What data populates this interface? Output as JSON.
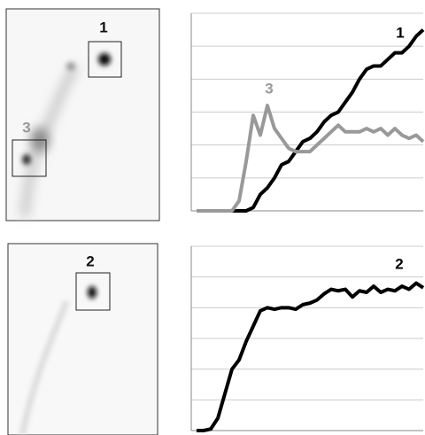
{
  "images": [
    {
      "labels": [
        "1",
        "3"
      ]
    },
    {
      "labels": [
        "2"
      ]
    }
  ],
  "chart_data": [
    {
      "type": "line",
      "x": [
        0,
        1,
        2,
        3,
        4,
        5,
        6,
        7,
        8,
        9,
        10,
        11,
        12,
        13,
        14,
        15,
        16,
        17,
        18,
        19,
        20,
        21,
        22,
        23,
        24,
        25,
        26,
        27,
        28,
        29,
        30,
        31,
        32
      ],
      "xlim": [
        0,
        32
      ],
      "ylim": [
        0,
        6
      ],
      "yticks": [
        0,
        1,
        2,
        3,
        4,
        5,
        6
      ],
      "grid": true,
      "series": [
        {
          "name": "1",
          "color": "#000000",
          "values": [
            0,
            0,
            0,
            0,
            0,
            0,
            0,
            0,
            0.1,
            0.5,
            0.7,
            1.0,
            1.4,
            1.5,
            1.8,
            2.1,
            2.2,
            2.4,
            2.7,
            2.9,
            3.0,
            3.3,
            3.6,
            4.0,
            4.3,
            4.4,
            4.4,
            4.6,
            4.8,
            4.8,
            5.0,
            5.3,
            5.5
          ]
        },
        {
          "name": "3",
          "color": "#999999",
          "values": [
            0,
            0,
            0,
            0,
            0,
            0,
            0.3,
            1.5,
            2.9,
            2.3,
            3.2,
            2.5,
            2.2,
            1.9,
            1.8,
            1.8,
            1.8,
            2.0,
            2.2,
            2.4,
            2.6,
            2.4,
            2.4,
            2.4,
            2.5,
            2.4,
            2.5,
            2.3,
            2.5,
            2.3,
            2.2,
            2.3,
            2.1
          ]
        }
      ]
    },
    {
      "type": "line",
      "x": [
        0,
        1,
        2,
        3,
        4,
        5,
        6,
        7,
        8,
        9,
        10,
        11,
        12,
        13,
        14,
        15,
        16,
        17,
        18,
        19,
        20,
        21,
        22,
        23,
        24,
        25,
        26,
        27,
        28,
        29,
        30,
        31,
        32
      ],
      "xlim": [
        0,
        32
      ],
      "ylim": [
        0,
        6
      ],
      "yticks": [
        0,
        1,
        2,
        3,
        4,
        5,
        6
      ],
      "grid": true,
      "series": [
        {
          "name": "2",
          "color": "#000000",
          "values": [
            0,
            0,
            0.05,
            0.4,
            1.2,
            2.0,
            2.3,
            2.9,
            3.4,
            3.9,
            4.0,
            3.95,
            4.0,
            4.0,
            3.95,
            4.1,
            4.15,
            4.25,
            4.45,
            4.6,
            4.55,
            4.6,
            4.35,
            4.55,
            4.5,
            4.7,
            4.5,
            4.6,
            4.55,
            4.7,
            4.6,
            4.8,
            4.65
          ]
        }
      ]
    }
  ]
}
